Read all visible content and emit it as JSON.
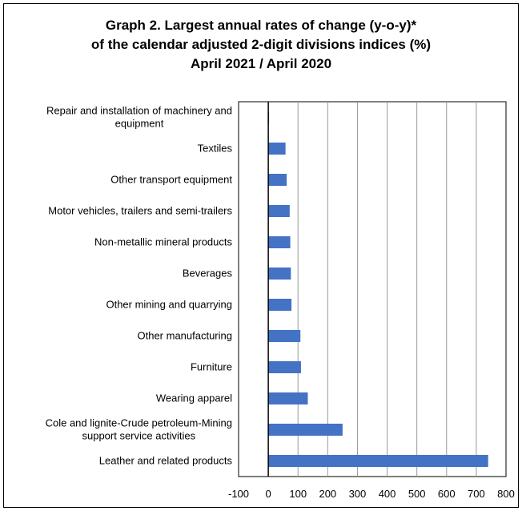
{
  "title_lines": [
    "Graph 2. Largest annual rates of change (y-o-y)*",
    "of the calendar adjusted 2-digit divisions indices (%)",
    "April 2021 / April 2020"
  ],
  "chart_data": {
    "type": "bar",
    "orientation": "horizontal",
    "title": "Graph 2. Largest annual rates of change (y-o-y)* of the calendar adjusted 2-digit divisions indices (%) April 2021 / April 2020",
    "categories": [
      "Repair and installation of machinery and equipment",
      "Textiles",
      "Other transport equipment",
      "Motor vehicles, trailers and semi-trailers",
      "Non-metallic mineral products",
      "Beverages",
      "Other mining and quarrying",
      "Other manufacturing",
      "Furniture",
      "Wearing apparel",
      "Cole and lignite-Crude petroleum-Mining support service activities",
      "Leather and related products"
    ],
    "category_lines": [
      [
        "Repair and installation of machinery and",
        "equipment"
      ],
      [
        "Textiles"
      ],
      [
        "Other transport equipment"
      ],
      [
        "Motor vehicles, trailers and semi-trailers"
      ],
      [
        "Non-metallic mineral products"
      ],
      [
        "Beverages"
      ],
      [
        "Other mining and quarrying"
      ],
      [
        "Other manufacturing"
      ],
      [
        "Furniture"
      ],
      [
        "Wearing apparel"
      ],
      [
        "Cole and lignite-Crude petroleum-Mining",
        "support service activities"
      ],
      [
        "Leather and related products"
      ]
    ],
    "values": [
      0.5,
      58,
      62,
      72,
      74,
      76,
      78,
      108,
      110,
      133,
      250,
      740
    ],
    "xlim": [
      -100,
      800
    ],
    "xticks": [
      -100,
      0,
      100,
      200,
      300,
      400,
      500,
      600,
      700,
      800
    ],
    "grid": true,
    "legend": "none",
    "bar_color": "#4472C4",
    "grid_color": "#999999"
  }
}
